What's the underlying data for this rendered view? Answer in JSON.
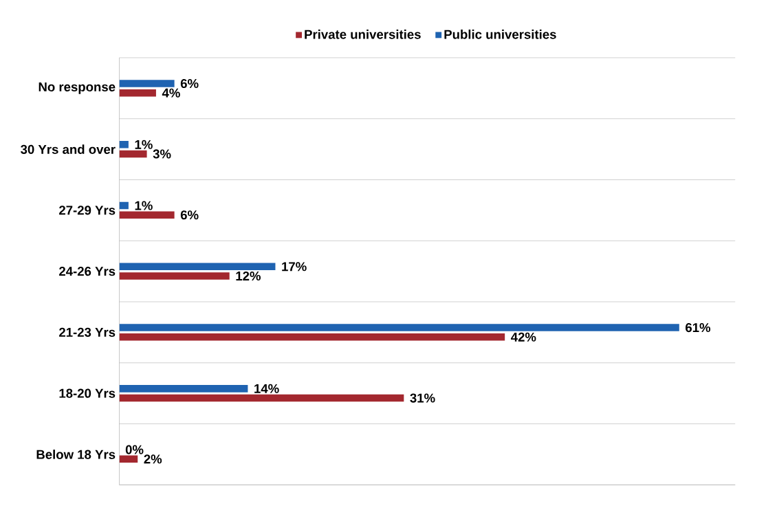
{
  "chart_data": {
    "type": "bar",
    "orientation": "horizontal",
    "categories": [
      "No response",
      "30 Yrs and over",
      "27-29 Yrs",
      "24-26 Yrs",
      "21-23 Yrs",
      "18-20 Yrs",
      "Below 18 Yrs"
    ],
    "series": [
      {
        "name": "Private universities",
        "color": "#a3282f",
        "values": [
          4,
          3,
          6,
          12,
          42,
          31,
          2
        ],
        "value_labels": [
          "4%",
          "3%",
          "6%",
          "12%",
          "42%",
          "31%",
          "2%"
        ]
      },
      {
        "name": "Public universities",
        "color": "#1f63b1",
        "values": [
          6,
          1,
          1,
          17,
          61,
          14,
          0
        ],
        "value_labels": [
          "6%",
          "1%",
          "1%",
          "17%",
          "61%",
          "14%",
          "0%"
        ]
      }
    ],
    "grid": "y",
    "legend": "top"
  }
}
